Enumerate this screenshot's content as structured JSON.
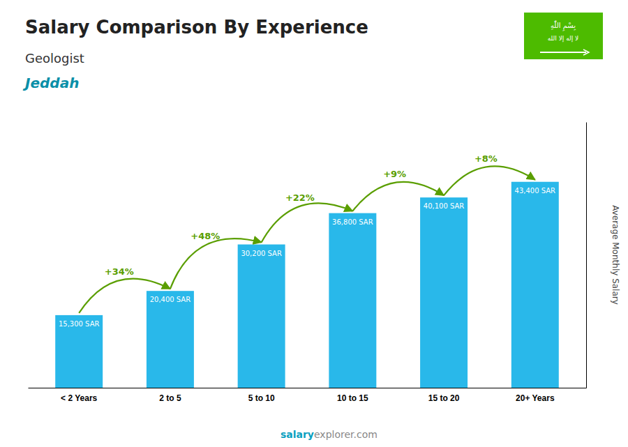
{
  "chart_data": {
    "type": "bar",
    "title": "Salary Comparison By Experience",
    "subtitle": [
      "Geologist",
      "Jeddah"
    ],
    "ylabel": "Average Monthly Salary",
    "categories": [
      "< 2 Years",
      "2 to 5",
      "5 to 10",
      "10 to 15",
      "15 to 20",
      "20+ Years"
    ],
    "values": [
      15300,
      20400,
      30200,
      36800,
      40100,
      43400
    ],
    "value_labels": [
      "15,300 SAR",
      "20,400 SAR",
      "30,200 SAR",
      "36,800 SAR",
      "40,100 SAR",
      "43,400 SAR"
    ],
    "data_labels": true,
    "annotations": [
      "+34%",
      "+48%",
      "+22%",
      "+9%",
      "+8%"
    ],
    "footer": [
      "salary",
      "explorer.com"
    ],
    "logo_text": [
      "بِسْمِ اللّٰهِ",
      "لا إله إلا الله"
    ],
    "color": "#29b8ea",
    "ylim": [
      0,
      56000
    ],
    "tick_labels": "x",
    "grid": false
  }
}
